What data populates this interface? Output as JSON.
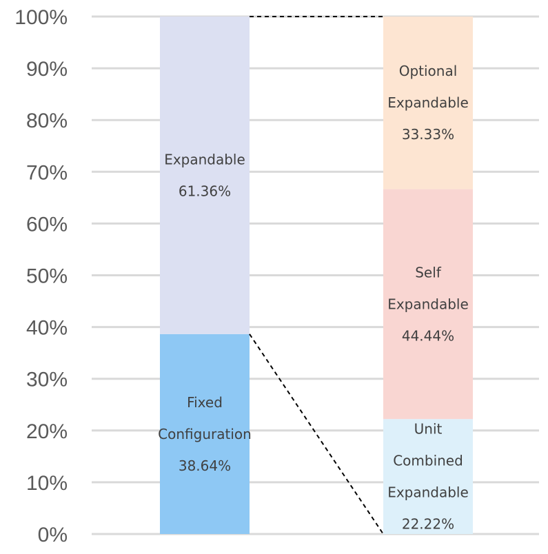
{
  "chart_data": {
    "type": "bar",
    "stacked": true,
    "percent_stacked": true,
    "ylim": [
      0,
      100
    ],
    "yticks": [
      0,
      10,
      20,
      30,
      40,
      50,
      60,
      70,
      80,
      90,
      100
    ],
    "ytick_labels": [
      "0%",
      "10%",
      "20%",
      "30%",
      "40%",
      "50%",
      "60%",
      "70%",
      "80%",
      "90%",
      "100%"
    ],
    "grid": true,
    "legend": "none",
    "title": "",
    "xlabel": "",
    "ylabel": "",
    "connector_lines": "dashed",
    "bars": [
      {
        "segments": [
          {
            "name_lines": [
              "Fixed",
              "Configuration"
            ],
            "value": 38.64,
            "value_label": "38.64%",
            "color": "#8EC8F4"
          },
          {
            "name_lines": [
              "Expandable"
            ],
            "value": 61.36,
            "value_label": "61.36%",
            "color": "#DCE0F2"
          }
        ]
      },
      {
        "segments": [
          {
            "name_lines": [
              "Unit",
              "Combined",
              "Expandable"
            ],
            "value": 22.22,
            "value_label": "22.22%",
            "color": "#DDF0FA"
          },
          {
            "name_lines": [
              "Self",
              "Expandable"
            ],
            "value": 44.44,
            "value_label": "44.44%",
            "color": "#F9D6D2"
          },
          {
            "name_lines": [
              "Optional",
              "Expandable"
            ],
            "value": 33.33,
            "value_label": "33.33%",
            "color": "#FDE5D2"
          }
        ]
      }
    ]
  }
}
